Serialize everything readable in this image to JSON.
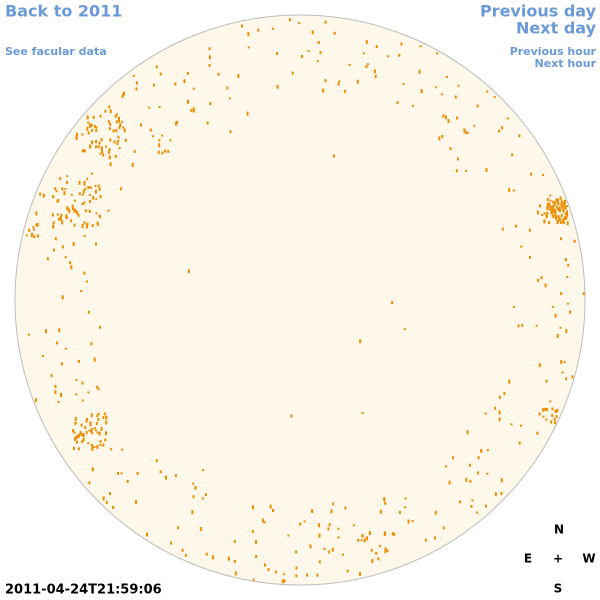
{
  "links": {
    "back": "Back to 2011",
    "facular": "See facular data",
    "previous_day": "Previous day",
    "next_day": "Next day",
    "previous_hour": "Previous hour",
    "next_hour": "Next hour"
  },
  "timestamp": "2011-04-24T21:59:06",
  "compass": {
    "north": "N",
    "east": "E",
    "center": "+",
    "west": "W",
    "south": "S"
  }
}
